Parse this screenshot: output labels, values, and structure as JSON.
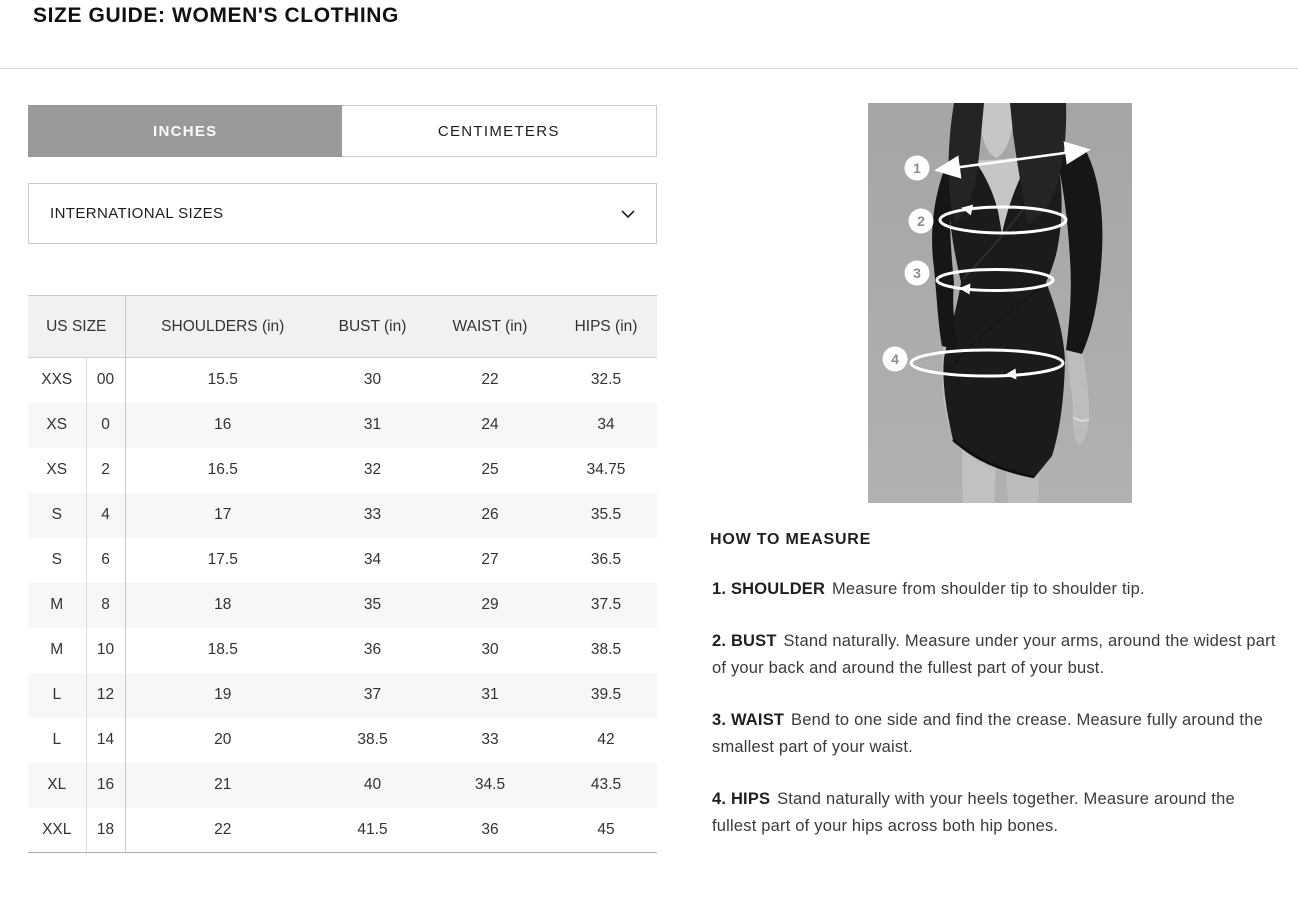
{
  "page": {
    "title": "SIZE GUIDE: WOMEN'S CLOTHING"
  },
  "unit_tabs": {
    "inches": "INCHES",
    "centimeters": "CENTIMETERS",
    "active": "INCHES"
  },
  "size_dropdown": {
    "selected": "INTERNATIONAL SIZES"
  },
  "size_table": {
    "header": {
      "us_size": "US SIZE",
      "shoulders": "SHOULDERS (in)",
      "bust": "BUST (in)",
      "waist": "WAIST (in)",
      "hips": "HIPS (in)"
    },
    "rows": [
      [
        "XXS",
        "00",
        "15.5",
        "30",
        "22",
        "32.5"
      ],
      [
        "XS",
        "0",
        "16",
        "31",
        "24",
        "34"
      ],
      [
        "XS",
        "2",
        "16.5",
        "32",
        "25",
        "34.75"
      ],
      [
        "S",
        "4",
        "17",
        "33",
        "26",
        "35.5"
      ],
      [
        "S",
        "6",
        "17.5",
        "34",
        "27",
        "36.5"
      ],
      [
        "M",
        "8",
        "18",
        "35",
        "29",
        "37.5"
      ],
      [
        "M",
        "10",
        "18.5",
        "36",
        "30",
        "38.5"
      ],
      [
        "L",
        "12",
        "19",
        "37",
        "31",
        "39.5"
      ],
      [
        "L",
        "14",
        "20",
        "38.5",
        "33",
        "42"
      ],
      [
        "XL",
        "16",
        "21",
        "40",
        "34.5",
        "43.5"
      ],
      [
        "XXL",
        "18",
        "22",
        "41.5",
        "36",
        "45"
      ]
    ]
  },
  "figure": {
    "markers": [
      "1",
      "2",
      "3",
      "4"
    ]
  },
  "how_to_measure": {
    "heading": "HOW TO MEASURE",
    "items": [
      {
        "label": "1. SHOULDER",
        "text": "Measure from shoulder tip to shoulder tip."
      },
      {
        "label": "2. BUST",
        "text": "Stand naturally. Measure under your arms, around the widest part of your back and around the fullest part of your bust."
      },
      {
        "label": "3. WAIST",
        "text": "Bend to one side and find the crease. Measure fully around the smallest part of your waist."
      },
      {
        "label": "4. HIPS",
        "text": "Stand naturally with your heels together. Measure around the fullest part of your hips across both hip bones."
      }
    ]
  },
  "colors": {
    "active_tab_gray": "#9a9a9a",
    "row_alt_gray": "#f7f7f7",
    "header_gray": "#f1f1f1",
    "border_gray": "#c9c9c9",
    "photo_backdrop": "#a9a9a9",
    "text": "#333333"
  }
}
